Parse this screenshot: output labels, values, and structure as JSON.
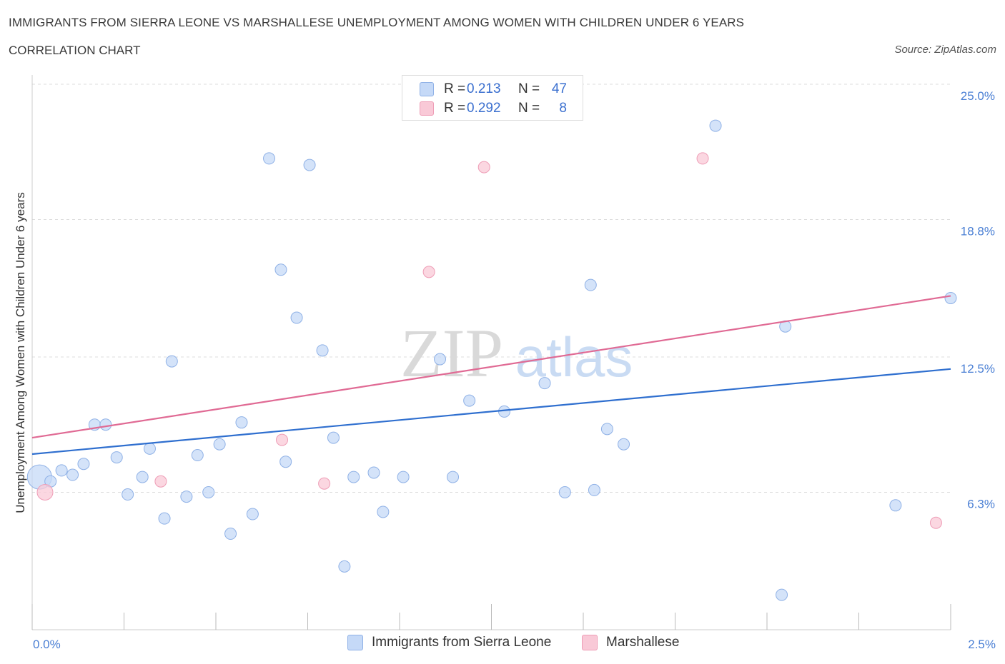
{
  "header": {
    "title": "IMMIGRANTS FROM SIERRA LEONE VS MARSHALLESE UNEMPLOYMENT AMONG WOMEN WITH CHILDREN UNDER 6 YEARS",
    "subtitle": "CORRELATION CHART",
    "source": "Source: ZipAtlas.com"
  },
  "watermark": {
    "zip": "ZIP",
    "atlas": "atlas"
  },
  "legend": {
    "rows": [
      {
        "r_label": "R =",
        "r_value": "0.213",
        "n_label": "N =",
        "n_value": "47"
      },
      {
        "r_label": "R =",
        "r_value": "0.292",
        "n_label": "N =",
        "n_value": "8"
      }
    ]
  },
  "colors": {
    "blue_fill": "#c5d9f7",
    "blue_stroke": "#8fb1e6",
    "blue_line": "#2f6fcf",
    "pink_fill": "#f9c9d7",
    "pink_stroke": "#ee9db6",
    "pink_line": "#e06a94",
    "grid": "#dcdcdc",
    "tick_text": "#4a7fd4"
  },
  "chart_data": {
    "type": "scatter",
    "title": "IMMIGRANTS FROM SIERRA LEONE VS MARSHALLESE UNEMPLOYMENT AMONG WOMEN WITH CHILDREN UNDER 6 YEARS",
    "xlabel": "",
    "ylabel": "Unemployment Among Women with Children Under 6 years",
    "xlim": [
      0,
      2.5
    ],
    "ylim": [
      0,
      25
    ],
    "x_tick_labels": [
      "0.0%",
      "2.5%"
    ],
    "y_ticks": [
      6.3,
      12.5,
      18.8,
      25.0
    ],
    "y_tick_labels": [
      "6.3%",
      "12.5%",
      "18.8%",
      "25.0%"
    ],
    "grid": true,
    "legend_position": "bottom",
    "series": [
      {
        "name": "Immigrants from Sierra Leone",
        "color": "#c5d9f7",
        "points": [
          {
            "x": 0.02,
            "y": 7.0,
            "big": true
          },
          {
            "x": 0.05,
            "y": 6.8
          },
          {
            "x": 0.08,
            "y": 7.3
          },
          {
            "x": 0.11,
            "y": 7.1
          },
          {
            "x": 0.14,
            "y": 7.6
          },
          {
            "x": 0.17,
            "y": 9.4
          },
          {
            "x": 0.2,
            "y": 9.4
          },
          {
            "x": 0.23,
            "y": 7.9
          },
          {
            "x": 0.26,
            "y": 6.2
          },
          {
            "x": 0.3,
            "y": 7.0
          },
          {
            "x": 0.32,
            "y": 8.3
          },
          {
            "x": 0.36,
            "y": 5.1
          },
          {
            "x": 0.38,
            "y": 12.3
          },
          {
            "x": 0.42,
            "y": 6.1
          },
          {
            "x": 0.45,
            "y": 8.0
          },
          {
            "x": 0.48,
            "y": 6.3
          },
          {
            "x": 0.51,
            "y": 8.5
          },
          {
            "x": 0.54,
            "y": 4.4
          },
          {
            "x": 0.57,
            "y": 9.5
          },
          {
            "x": 0.6,
            "y": 5.3
          },
          {
            "x": 0.645,
            "y": 21.6
          },
          {
            "x": 0.677,
            "y": 16.5
          },
          {
            "x": 0.69,
            "y": 7.7
          },
          {
            "x": 0.72,
            "y": 14.3
          },
          {
            "x": 0.755,
            "y": 21.3
          },
          {
            "x": 0.79,
            "y": 12.8
          },
          {
            "x": 0.82,
            "y": 8.8
          },
          {
            "x": 0.85,
            "y": 2.9
          },
          {
            "x": 0.875,
            "y": 7.0
          },
          {
            "x": 0.93,
            "y": 7.2
          },
          {
            "x": 0.955,
            "y": 5.4
          },
          {
            "x": 1.01,
            "y": 7.0
          },
          {
            "x": 1.11,
            "y": 12.4
          },
          {
            "x": 1.145,
            "y": 7.0
          },
          {
            "x": 1.19,
            "y": 10.5
          },
          {
            "x": 1.285,
            "y": 10.0
          },
          {
            "x": 1.395,
            "y": 11.3
          },
          {
            "x": 1.45,
            "y": 6.3
          },
          {
            "x": 1.52,
            "y": 15.8
          },
          {
            "x": 1.53,
            "y": 6.4
          },
          {
            "x": 1.565,
            "y": 9.2
          },
          {
            "x": 1.61,
            "y": 8.5
          },
          {
            "x": 1.86,
            "y": 23.1
          },
          {
            "x": 2.04,
            "y": 1.6
          },
          {
            "x": 2.05,
            "y": 13.9
          },
          {
            "x": 2.35,
            "y": 5.7
          },
          {
            "x": 2.5,
            "y": 15.2
          }
        ],
        "trend": {
          "x": [
            0,
            2.5
          ],
          "y": [
            8.05,
            11.95
          ]
        }
      },
      {
        "name": "Marshallese",
        "color": "#f9c9d7",
        "points": [
          {
            "x": 0.035,
            "y": 6.3,
            "big": true
          },
          {
            "x": 0.35,
            "y": 6.8
          },
          {
            "x": 0.68,
            "y": 8.7
          },
          {
            "x": 0.795,
            "y": 6.7
          },
          {
            "x": 1.08,
            "y": 16.4
          },
          {
            "x": 1.23,
            "y": 21.2
          },
          {
            "x": 1.825,
            "y": 21.6
          },
          {
            "x": 2.46,
            "y": 4.9
          }
        ],
        "trend": {
          "x": [
            0,
            2.5
          ],
          "y": [
            8.8,
            15.3
          ]
        }
      }
    ]
  }
}
